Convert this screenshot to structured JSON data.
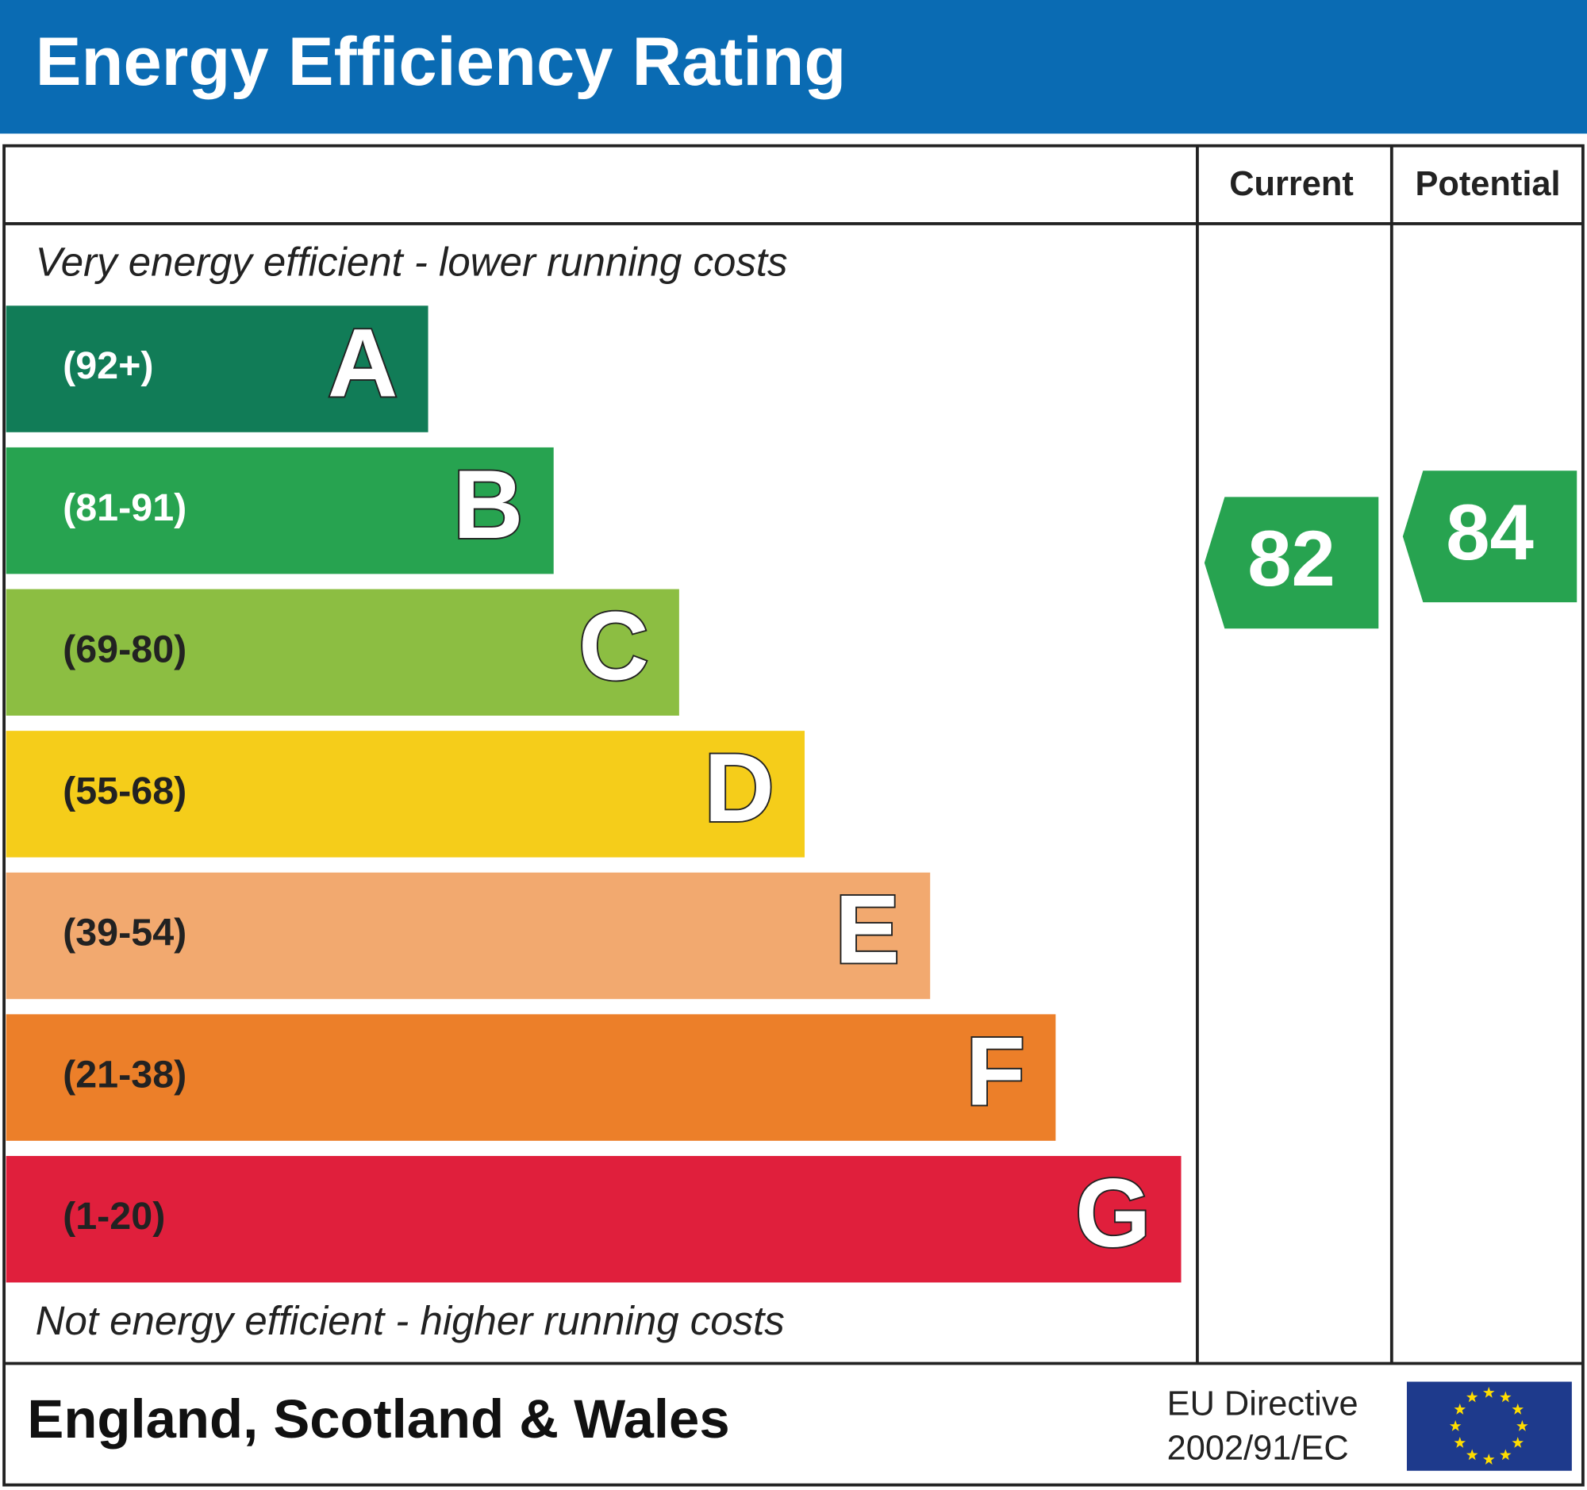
{
  "header": {
    "title": "Energy Efficiency Rating"
  },
  "columns": {
    "current": "Current",
    "potential": "Potential"
  },
  "top_note": "Very energy efficient - lower running costs",
  "bands": [
    {
      "range": "(92+)",
      "letter": "A",
      "color": "#117c57",
      "text_color": "#ffffff"
    },
    {
      "range": "(81-91)",
      "letter": "B",
      "color": "#27a350",
      "text_color": "#ffffff"
    },
    {
      "range": "(69-80)",
      "letter": "C",
      "color": "#8cbe42",
      "text_color": "#222222"
    },
    {
      "range": "(55-68)",
      "letter": "D",
      "color": "#f5cd1a",
      "text_color": "#222222"
    },
    {
      "range": "(39-54)",
      "letter": "E",
      "color": "#f2a96f",
      "text_color": "#222222"
    },
    {
      "range": "(21-38)",
      "letter": "F",
      "color": "#ec7f29",
      "text_color": "#222222"
    },
    {
      "range": "(1-20)",
      "letter": "G",
      "color": "#e01f3c",
      "text_color": "#222222"
    }
  ],
  "bottom_note": "Not energy efficient - higher running costs",
  "ratings": {
    "current": 82,
    "potential": 84,
    "color": "#27a350"
  },
  "footer": {
    "region": "England, Scotland & Wales",
    "directive": [
      "EU Directive",
      "2002/91/EC"
    ]
  }
}
